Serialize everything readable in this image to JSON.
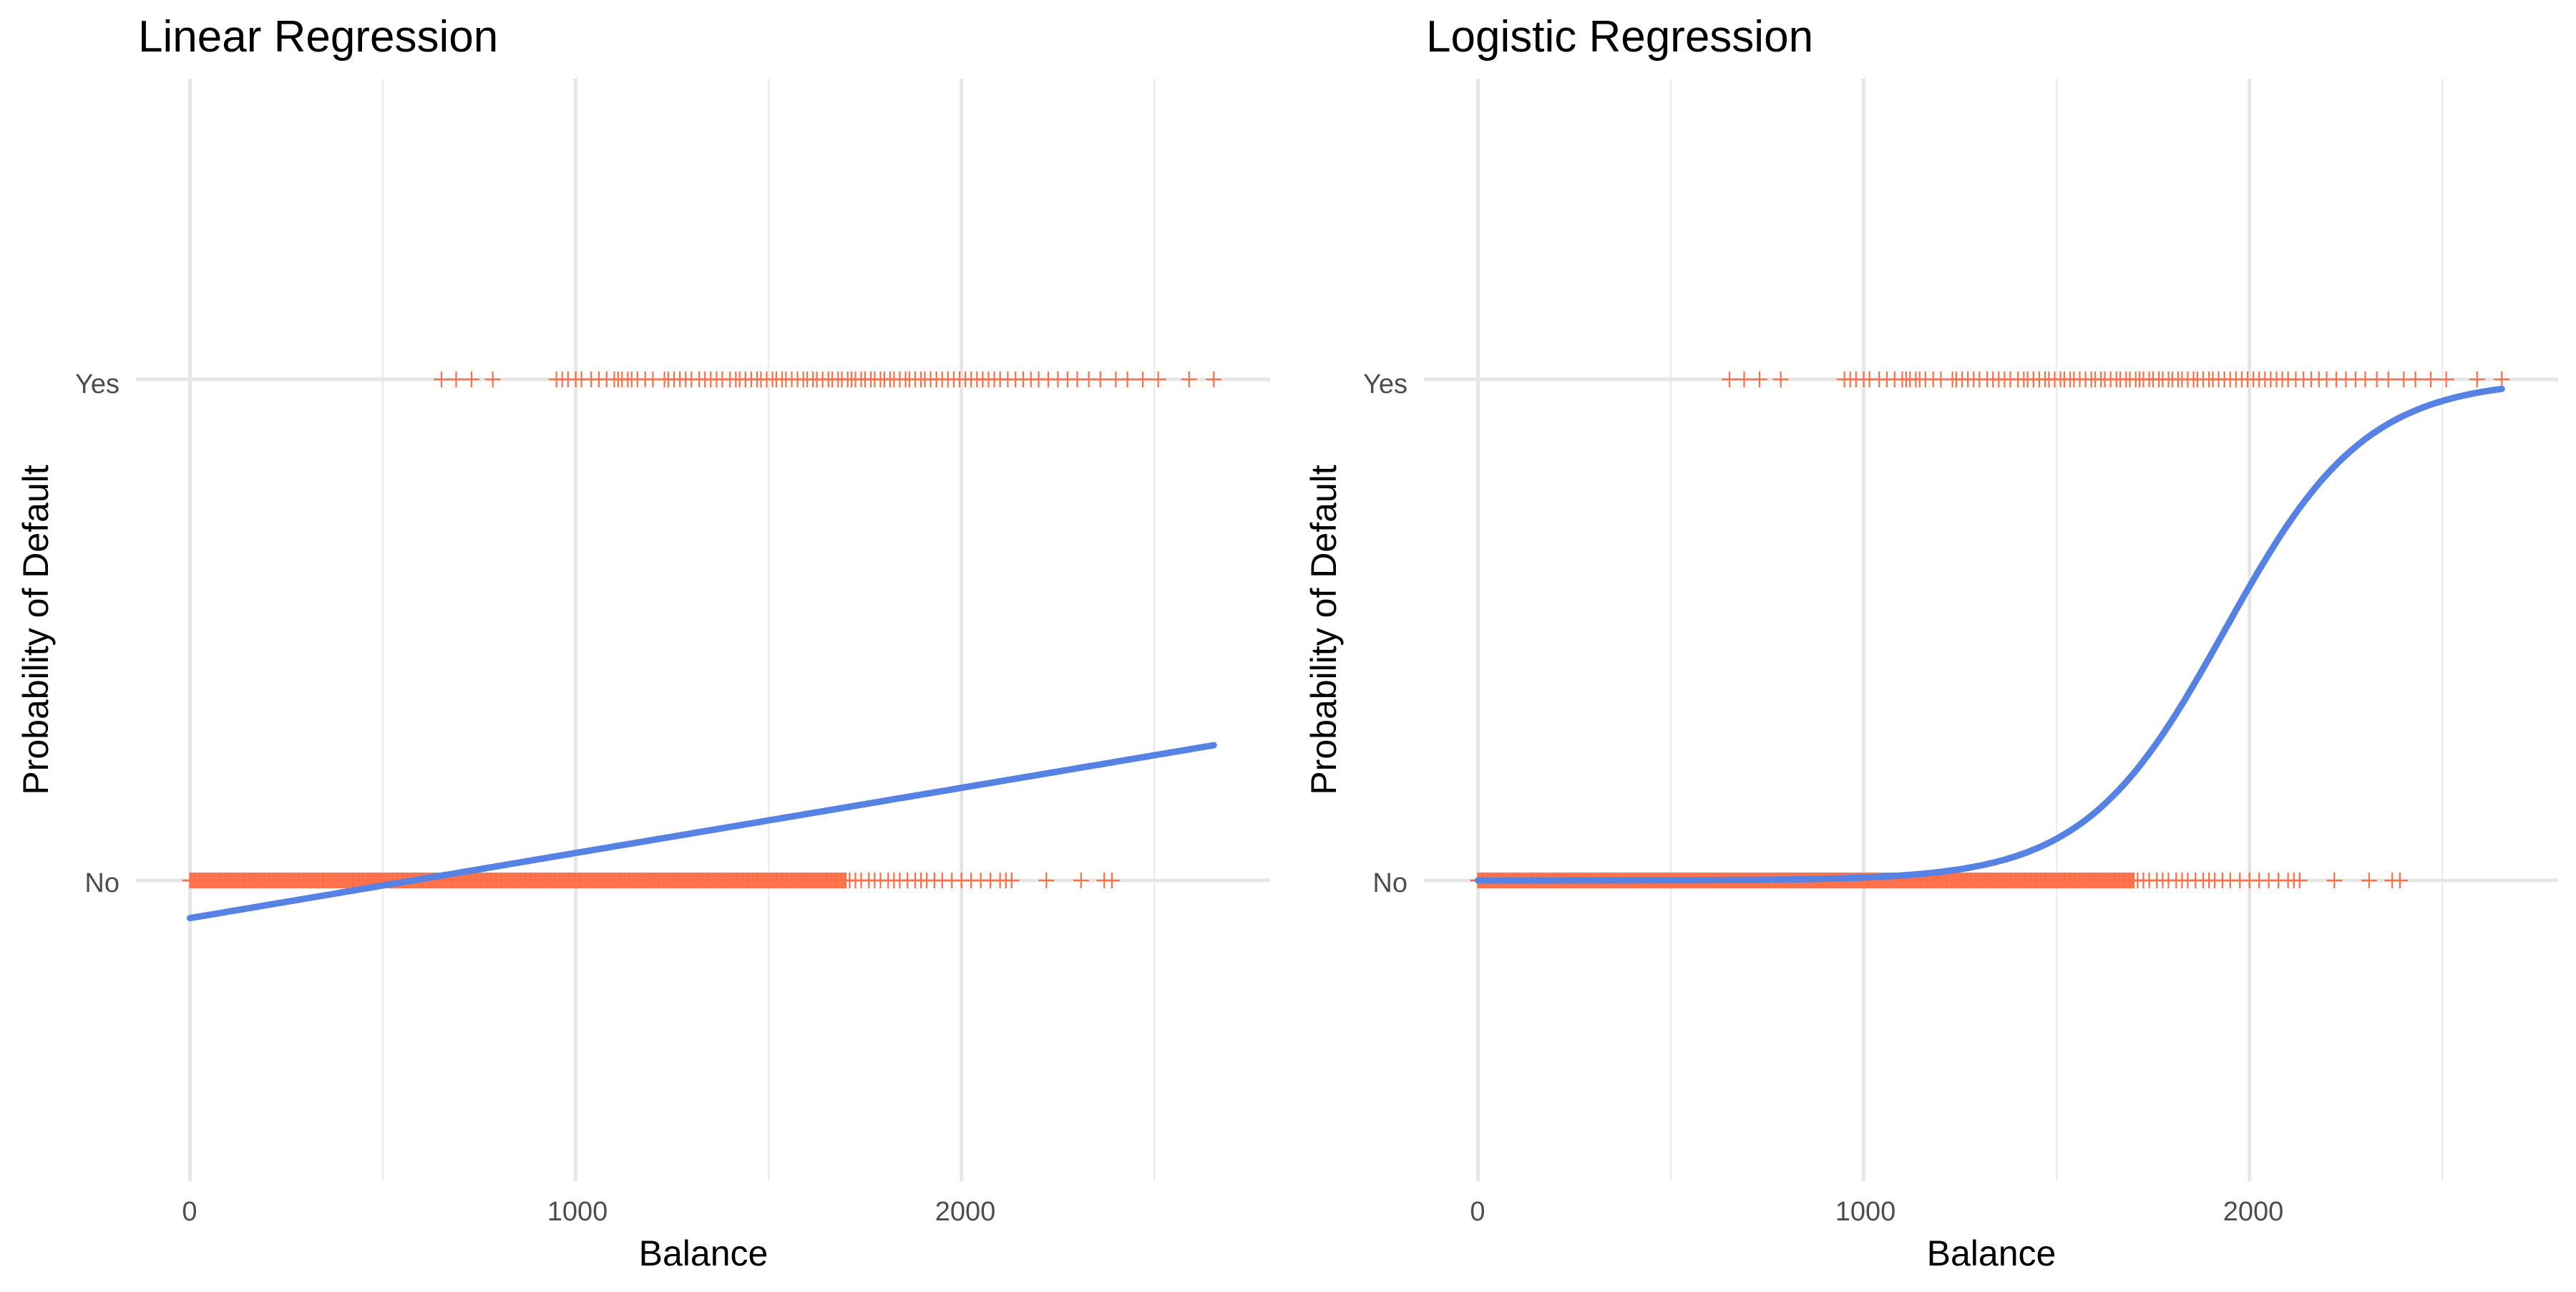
{
  "colors": {
    "points": "#FF6F47",
    "fit": "#5682E3"
  },
  "chart_data": [
    {
      "type": "scatter",
      "title": "Linear Regression",
      "xlabel": "Balance",
      "ylabel": "Probability of Default",
      "x_ticks": [
        0,
        1000,
        2000
      ],
      "x_tick_labels": [
        "0",
        "1000",
        "2000"
      ],
      "y_ticks": [
        0,
        1
      ],
      "y_tick_labels": [
        "No",
        "Yes"
      ],
      "xlim": [
        -140,
        2800
      ],
      "ylim": [
        -0.6,
        1.6
      ],
      "grid": true,
      "legend": "none",
      "series": [
        {
          "kind": "points",
          "marker": "+",
          "yes_balance": [
            652,
            690,
            730,
            785,
            950,
            965,
            980,
            1000,
            1015,
            1040,
            1060,
            1080,
            1100,
            1110,
            1120,
            1135,
            1145,
            1160,
            1180,
            1200,
            1230,
            1240,
            1255,
            1270,
            1285,
            1300,
            1320,
            1335,
            1350,
            1365,
            1380,
            1400,
            1415,
            1425,
            1440,
            1455,
            1470,
            1480,
            1495,
            1510,
            1520,
            1535,
            1545,
            1560,
            1575,
            1590,
            1600,
            1615,
            1625,
            1640,
            1655,
            1665,
            1680,
            1690,
            1705,
            1715,
            1725,
            1740,
            1750,
            1765,
            1775,
            1790,
            1800,
            1815,
            1825,
            1840,
            1855,
            1865,
            1880,
            1895,
            1905,
            1920,
            1935,
            1950,
            1965,
            1980,
            1995,
            2010,
            2025,
            2040,
            2055,
            2070,
            2085,
            2100,
            2120,
            2140,
            2160,
            2180,
            2200,
            2225,
            2250,
            2275,
            2300,
            2330,
            2360,
            2400,
            2430,
            2470,
            2510,
            2590,
            2654
          ],
          "no_min": 0,
          "no_dense_max": 1700,
          "no_sparse_balance": [
            1710,
            1725,
            1740,
            1760,
            1775,
            1790,
            1810,
            1825,
            1840,
            1860,
            1880,
            1895,
            1910,
            1930,
            1950,
            1975,
            2000,
            2025,
            2050,
            2075,
            2100,
            2115,
            2130,
            2220,
            2310,
            2370,
            2390
          ]
        },
        {
          "kind": "fit",
          "model": "linear",
          "intercept": -0.0752,
          "slope": 0.00013,
          "x_range": [
            0,
            2654
          ]
        }
      ]
    },
    {
      "type": "scatter",
      "title": "Logistic Regression",
      "xlabel": "Balance",
      "ylabel": "Probability of Default",
      "x_ticks": [
        0,
        1000,
        2000
      ],
      "x_tick_labels": [
        "0",
        "1000",
        "2000"
      ],
      "y_ticks": [
        0,
        1
      ],
      "y_tick_labels": [
        "No",
        "Yes"
      ],
      "xlim": [
        -140,
        2800
      ],
      "ylim": [
        -0.6,
        1.6
      ],
      "grid": true,
      "legend": "none",
      "series": [
        {
          "kind": "points",
          "marker": "+",
          "yes_balance": [
            652,
            690,
            730,
            785,
            950,
            965,
            980,
            1000,
            1015,
            1040,
            1060,
            1080,
            1100,
            1110,
            1120,
            1135,
            1145,
            1160,
            1180,
            1200,
            1230,
            1240,
            1255,
            1270,
            1285,
            1300,
            1320,
            1335,
            1350,
            1365,
            1380,
            1400,
            1415,
            1425,
            1440,
            1455,
            1470,
            1480,
            1495,
            1510,
            1520,
            1535,
            1545,
            1560,
            1575,
            1590,
            1600,
            1615,
            1625,
            1640,
            1655,
            1665,
            1680,
            1690,
            1705,
            1715,
            1725,
            1740,
            1750,
            1765,
            1775,
            1790,
            1800,
            1815,
            1825,
            1840,
            1855,
            1865,
            1880,
            1895,
            1905,
            1920,
            1935,
            1950,
            1965,
            1980,
            1995,
            2010,
            2025,
            2040,
            2055,
            2070,
            2085,
            2100,
            2120,
            2140,
            2160,
            2180,
            2200,
            2225,
            2250,
            2275,
            2300,
            2330,
            2360,
            2400,
            2430,
            2470,
            2510,
            2590,
            2654
          ],
          "no_min": 0,
          "no_dense_max": 1700,
          "no_sparse_balance": [
            1710,
            1725,
            1740,
            1760,
            1775,
            1790,
            1810,
            1825,
            1840,
            1860,
            1880,
            1895,
            1910,
            1930,
            1950,
            1975,
            2000,
            2025,
            2050,
            2075,
            2100,
            2115,
            2130,
            2220,
            2310,
            2370,
            2390
          ]
        },
        {
          "kind": "fit",
          "model": "logistic",
          "intercept": -10.65,
          "slope": 0.0055,
          "x_range": [
            0,
            2654
          ]
        }
      ]
    }
  ]
}
